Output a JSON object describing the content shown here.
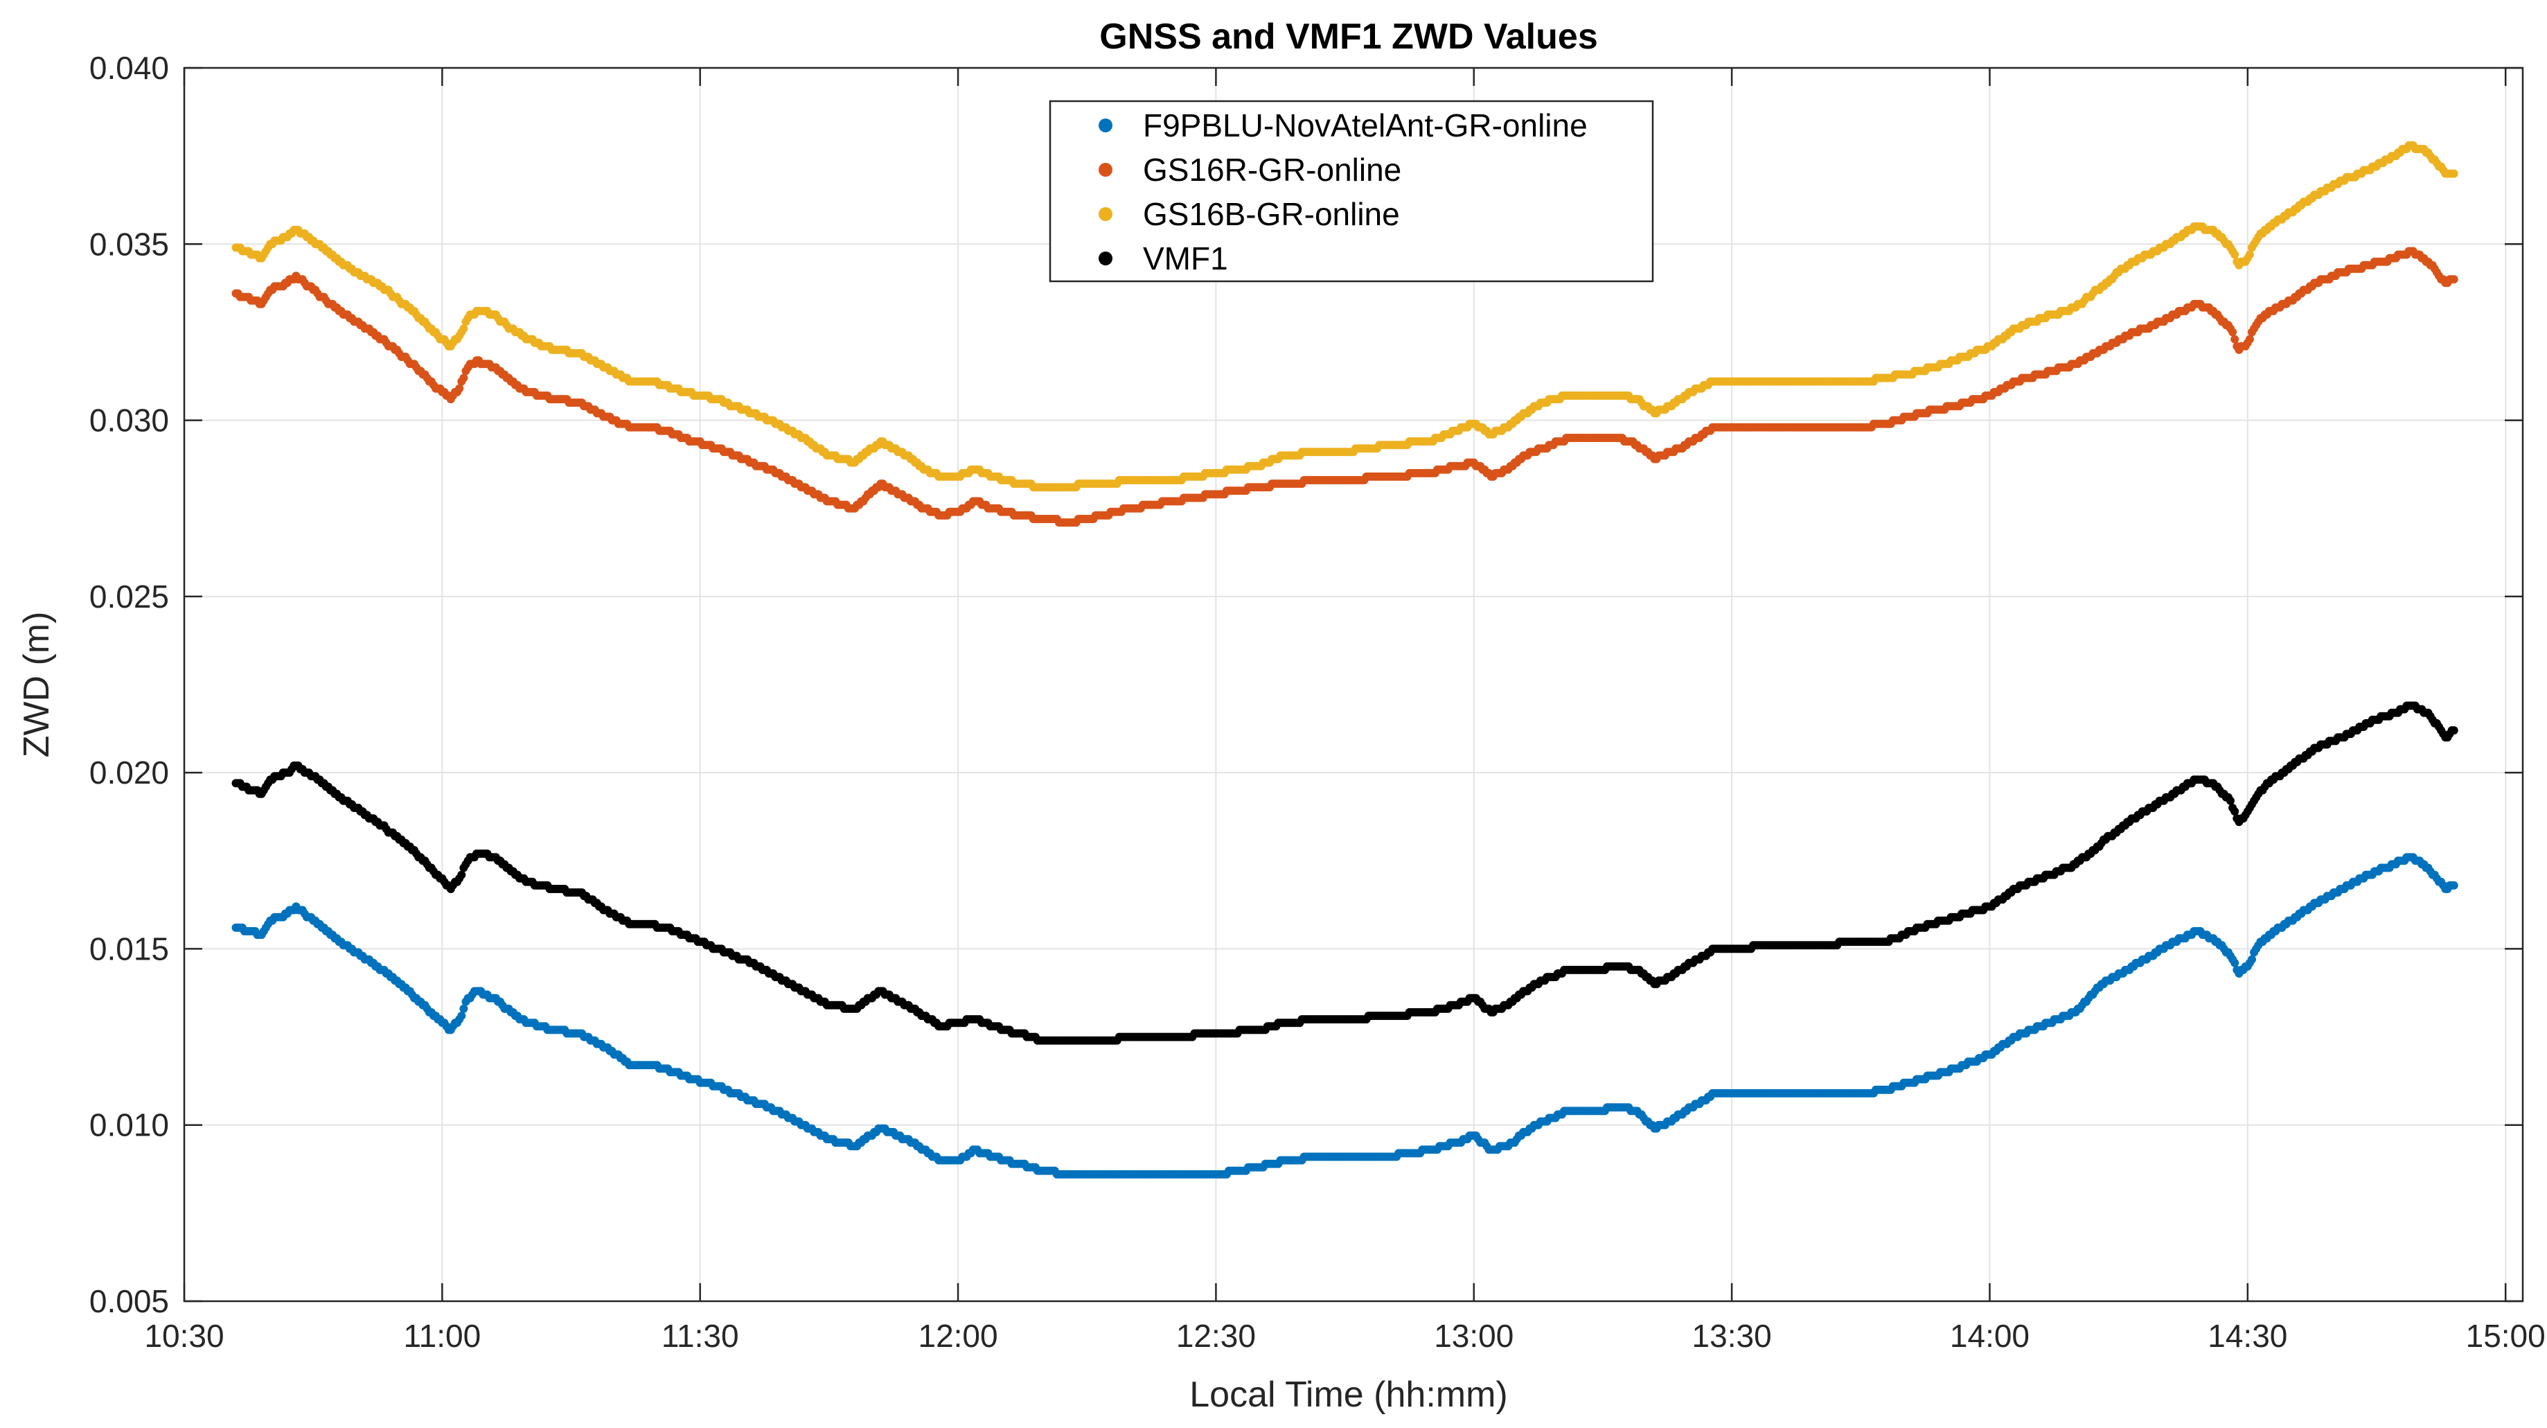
{
  "chart_data": {
    "type": "scatter",
    "title": "GNSS and VMF1 ZWD Values",
    "xlabel": "Local Time (hh:mm)",
    "ylabel": "ZWD (m)",
    "xlim_minutes": [
      630,
      902
    ],
    "ylim": [
      0.005,
      0.04
    ],
    "x_ticks": [
      {
        "minutes": 630,
        "label": "10:30"
      },
      {
        "minutes": 660,
        "label": "11:00"
      },
      {
        "minutes": 690,
        "label": "11:30"
      },
      {
        "minutes": 720,
        "label": "12:00"
      },
      {
        "minutes": 750,
        "label": "12:30"
      },
      {
        "minutes": 780,
        "label": "13:00"
      },
      {
        "minutes": 810,
        "label": "13:30"
      },
      {
        "minutes": 840,
        "label": "14:00"
      },
      {
        "minutes": 870,
        "label": "14:30"
      },
      {
        "minutes": 900,
        "label": "15:00"
      }
    ],
    "y_ticks": [
      {
        "value": 0.005,
        "label": "0.005"
      },
      {
        "value": 0.01,
        "label": "0.010"
      },
      {
        "value": 0.015,
        "label": "0.015"
      },
      {
        "value": 0.02,
        "label": "0.020"
      },
      {
        "value": 0.025,
        "label": "0.025"
      },
      {
        "value": 0.03,
        "label": "0.030"
      },
      {
        "value": 0.035,
        "label": "0.035"
      },
      {
        "value": 0.04,
        "label": "0.040"
      }
    ],
    "grid": true,
    "legend_position": "top-center",
    "x_unit": "minutes since midnight (local time)",
    "series": [
      {
        "name": "F9PBLU-NovAtelAnt-GR-online",
        "color": "#0072BD",
        "x": [
          636,
          639,
          640,
          642,
          643,
          645,
          648,
          650,
          653,
          655,
          657,
          659,
          661,
          662,
          663,
          664,
          665,
          666,
          668,
          670,
          673,
          676,
          679,
          682,
          684,
          686,
          688,
          692,
          696,
          699,
          702,
          705,
          708,
          711,
          714,
          716,
          718,
          720,
          722,
          724,
          727,
          730,
          733,
          735,
          737,
          740,
          745,
          750,
          755,
          758,
          762,
          765,
          770,
          775,
          778,
          780,
          782,
          784,
          786,
          788,
          791,
          794,
          797,
          799,
          801,
          802,
          804,
          806,
          808,
          810,
          815,
          820,
          825,
          828,
          832,
          836,
          840,
          843,
          846,
          850,
          853,
          856,
          860,
          864,
          866,
          868,
          869,
          870,
          871,
          872,
          875,
          878,
          881,
          884,
          887,
          889,
          891,
          893,
          894
        ],
        "y": [
          0.0156,
          0.0154,
          0.0158,
          0.016,
          0.0162,
          0.0158,
          0.0152,
          0.0149,
          0.0144,
          0.014,
          0.0136,
          0.0131,
          0.0127,
          0.013,
          0.0136,
          0.0138,
          0.0137,
          0.0136,
          0.0132,
          0.0129,
          0.0127,
          0.0126,
          0.0122,
          0.0117,
          0.0117,
          0.0116,
          0.0114,
          0.0111,
          0.0107,
          0.0104,
          0.01,
          0.0096,
          0.0094,
          0.0099,
          0.0096,
          0.0093,
          0.009,
          0.009,
          0.0093,
          0.0091,
          0.0089,
          0.0087,
          0.0086,
          0.0086,
          0.0086,
          0.0086,
          0.0086,
          0.0086,
          0.0088,
          0.009,
          0.0091,
          0.0091,
          0.0091,
          0.0093,
          0.0095,
          0.0097,
          0.0093,
          0.0094,
          0.0098,
          0.0101,
          0.0104,
          0.0104,
          0.0105,
          0.0104,
          0.0099,
          0.01,
          0.0103,
          0.0106,
          0.0109,
          0.0109,
          0.0109,
          0.0109,
          0.0109,
          0.011,
          0.0113,
          0.0116,
          0.012,
          0.0125,
          0.0128,
          0.0132,
          0.014,
          0.0144,
          0.015,
          0.0155,
          0.0153,
          0.0148,
          0.0143,
          0.0145,
          0.015,
          0.0153,
          0.0158,
          0.0163,
          0.0167,
          0.0171,
          0.0174,
          0.0176,
          0.0173,
          0.0167,
          0.0168
        ]
      },
      {
        "name": "GS16R-GR-online",
        "color": "#D95319",
        "x": [
          636,
          639,
          640,
          642,
          643,
          645,
          648,
          650,
          653,
          655,
          657,
          659,
          661,
          662,
          663,
          664,
          665,
          666,
          668,
          670,
          673,
          676,
          679,
          682,
          684,
          686,
          688,
          692,
          696,
          699,
          702,
          705,
          708,
          711,
          714,
          716,
          718,
          720,
          722,
          724,
          727,
          730,
          733,
          735,
          737,
          740,
          745,
          750,
          755,
          758,
          762,
          765,
          770,
          775,
          778,
          780,
          782,
          784,
          786,
          788,
          791,
          794,
          797,
          799,
          801,
          802,
          804,
          806,
          808,
          810,
          815,
          820,
          825,
          828,
          832,
          836,
          840,
          843,
          846,
          850,
          853,
          856,
          860,
          864,
          866,
          868,
          869,
          870,
          871,
          872,
          875,
          878,
          881,
          884,
          887,
          889,
          891,
          893,
          894
        ],
        "y": [
          0.0336,
          0.0333,
          0.0337,
          0.0339,
          0.0341,
          0.0337,
          0.0331,
          0.0328,
          0.0323,
          0.0319,
          0.0315,
          0.031,
          0.0306,
          0.0309,
          0.0315,
          0.0317,
          0.0316,
          0.0315,
          0.0311,
          0.0308,
          0.0306,
          0.0305,
          0.0301,
          0.0298,
          0.0298,
          0.0297,
          0.0295,
          0.0292,
          0.0288,
          0.0285,
          0.0281,
          0.0277,
          0.0275,
          0.0282,
          0.0278,
          0.0275,
          0.0273,
          0.0274,
          0.0277,
          0.0275,
          0.0273,
          0.0272,
          0.0271,
          0.0272,
          0.0273,
          0.0275,
          0.0277,
          0.0279,
          0.0281,
          0.0282,
          0.0283,
          0.0283,
          0.0284,
          0.0285,
          0.0287,
          0.0288,
          0.0284,
          0.0286,
          0.029,
          0.0292,
          0.0295,
          0.0295,
          0.0295,
          0.0293,
          0.0289,
          0.029,
          0.0292,
          0.0295,
          0.0298,
          0.0298,
          0.0298,
          0.0298,
          0.0298,
          0.0299,
          0.0302,
          0.0304,
          0.0307,
          0.0311,
          0.0313,
          0.0316,
          0.032,
          0.0324,
          0.0328,
          0.0333,
          0.0331,
          0.0326,
          0.032,
          0.0322,
          0.0327,
          0.033,
          0.0334,
          0.0339,
          0.0342,
          0.0344,
          0.0346,
          0.0348,
          0.0345,
          0.0339,
          0.034
        ]
      },
      {
        "name": "GS16B-GR-online",
        "color": "#EDB120",
        "x": [
          636,
          639,
          640,
          642,
          643,
          645,
          648,
          650,
          653,
          655,
          657,
          659,
          661,
          662,
          663,
          664,
          665,
          666,
          668,
          670,
          673,
          676,
          679,
          682,
          684,
          686,
          688,
          692,
          696,
          699,
          702,
          705,
          708,
          711,
          714,
          716,
          718,
          720,
          722,
          724,
          727,
          730,
          733,
          735,
          737,
          740,
          745,
          750,
          755,
          758,
          762,
          765,
          770,
          775,
          778,
          780,
          782,
          784,
          786,
          788,
          791,
          794,
          797,
          799,
          801,
          802,
          804,
          806,
          808,
          810,
          815,
          820,
          825,
          828,
          832,
          836,
          840,
          843,
          846,
          850,
          853,
          856,
          860,
          864,
          866,
          868,
          869,
          870,
          871,
          872,
          875,
          878,
          881,
          884,
          887,
          889,
          891,
          893,
          894
        ],
        "y": [
          0.0349,
          0.0346,
          0.035,
          0.0352,
          0.0354,
          0.0351,
          0.0345,
          0.0342,
          0.0338,
          0.0334,
          0.033,
          0.0325,
          0.0321,
          0.0324,
          0.0329,
          0.0331,
          0.0331,
          0.033,
          0.0326,
          0.0323,
          0.032,
          0.0319,
          0.0315,
          0.0311,
          0.0311,
          0.031,
          0.0308,
          0.0306,
          0.0302,
          0.0299,
          0.0295,
          0.029,
          0.0288,
          0.0294,
          0.029,
          0.0286,
          0.0284,
          0.0284,
          0.0286,
          0.0284,
          0.0282,
          0.0281,
          0.0281,
          0.0282,
          0.0282,
          0.0283,
          0.0283,
          0.0285,
          0.0287,
          0.029,
          0.0291,
          0.0291,
          0.0293,
          0.0294,
          0.0297,
          0.0299,
          0.0296,
          0.0298,
          0.0302,
          0.0305,
          0.0307,
          0.0307,
          0.0307,
          0.0306,
          0.0302,
          0.0303,
          0.0306,
          0.0309,
          0.0311,
          0.0311,
          0.0311,
          0.0311,
          0.0311,
          0.0312,
          0.0314,
          0.0317,
          0.0321,
          0.0326,
          0.0329,
          0.0332,
          0.0338,
          0.0344,
          0.0349,
          0.0355,
          0.0354,
          0.0349,
          0.0344,
          0.0346,
          0.0351,
          0.0354,
          0.0359,
          0.0364,
          0.0368,
          0.0371,
          0.0375,
          0.0378,
          0.0376,
          0.037,
          0.037
        ]
      },
      {
        "name": "VMF1",
        "color": "#000000",
        "x": [
          636,
          639,
          640,
          642,
          643,
          645,
          648,
          650,
          653,
          655,
          657,
          659,
          661,
          662,
          663,
          664,
          665,
          666,
          668,
          670,
          673,
          676,
          679,
          682,
          684,
          686,
          688,
          692,
          696,
          699,
          702,
          705,
          708,
          711,
          714,
          716,
          718,
          720,
          722,
          724,
          727,
          730,
          733,
          735,
          737,
          740,
          745,
          750,
          755,
          758,
          762,
          765,
          770,
          775,
          778,
          780,
          782,
          784,
          786,
          788,
          791,
          794,
          797,
          799,
          801,
          802,
          804,
          806,
          808,
          810,
          815,
          820,
          825,
          828,
          832,
          836,
          840,
          843,
          846,
          850,
          853,
          856,
          860,
          864,
          866,
          868,
          869,
          870,
          871,
          872,
          875,
          878,
          881,
          884,
          887,
          889,
          891,
          893,
          894
        ],
        "y": [
          0.0197,
          0.0194,
          0.0198,
          0.02,
          0.0202,
          0.0199,
          0.0193,
          0.019,
          0.0185,
          0.0181,
          0.0177,
          0.0172,
          0.0167,
          0.017,
          0.0175,
          0.0177,
          0.0177,
          0.0176,
          0.0172,
          0.0169,
          0.0167,
          0.0166,
          0.0161,
          0.0157,
          0.0157,
          0.0156,
          0.0154,
          0.015,
          0.0146,
          0.0142,
          0.0138,
          0.0134,
          0.0133,
          0.0138,
          0.0134,
          0.0131,
          0.0128,
          0.0129,
          0.013,
          0.0128,
          0.0126,
          0.0124,
          0.0124,
          0.0124,
          0.0124,
          0.0125,
          0.0125,
          0.0126,
          0.0127,
          0.0129,
          0.013,
          0.013,
          0.0131,
          0.0132,
          0.0134,
          0.0136,
          0.0132,
          0.0134,
          0.0138,
          0.0141,
          0.0144,
          0.0144,
          0.0145,
          0.0144,
          0.014,
          0.0141,
          0.0144,
          0.0147,
          0.015,
          0.015,
          0.0151,
          0.0151,
          0.0152,
          0.0152,
          0.0156,
          0.0159,
          0.0162,
          0.0167,
          0.017,
          0.0174,
          0.018,
          0.0186,
          0.0192,
          0.0198,
          0.0197,
          0.0192,
          0.0186,
          0.0189,
          0.0193,
          0.0196,
          0.0202,
          0.0207,
          0.021,
          0.0214,
          0.0217,
          0.0219,
          0.0217,
          0.021,
          0.0212
        ]
      }
    ]
  }
}
